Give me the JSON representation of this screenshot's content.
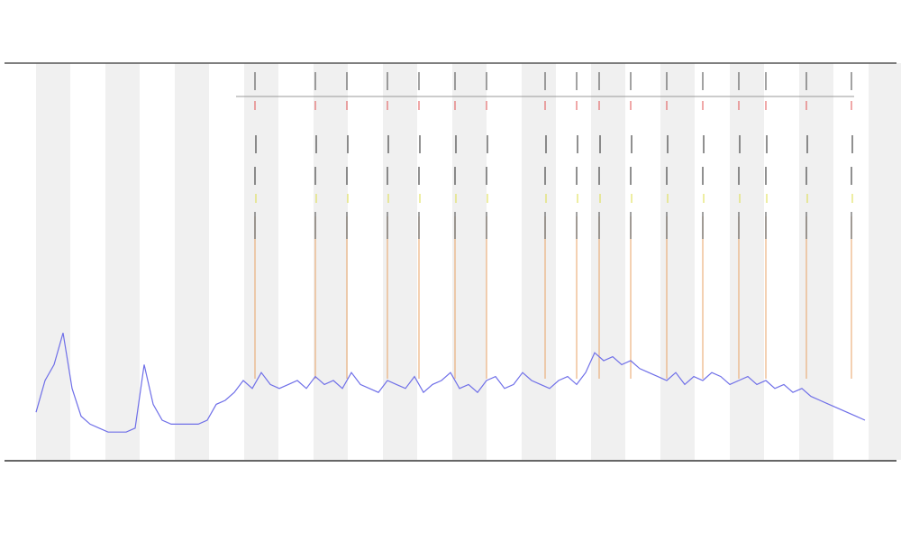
{
  "chart_data": {
    "type": "line",
    "x": [
      40,
      50,
      60,
      70,
      80,
      90,
      100,
      110,
      120,
      130,
      140,
      150,
      160,
      170,
      180,
      190,
      200,
      210,
      220,
      230,
      240,
      250,
      260,
      270,
      280,
      290,
      300,
      310,
      320,
      330,
      340,
      350,
      360,
      370,
      380,
      390,
      400,
      410,
      420,
      430,
      440,
      450,
      460,
      470,
      480,
      490,
      500,
      510,
      520,
      530,
      540,
      550,
      560,
      570,
      580,
      590,
      600,
      610,
      620,
      630,
      640,
      650,
      660,
      670,
      680,
      690,
      700,
      710,
      720,
      730,
      740,
      750,
      760,
      770,
      780,
      790,
      800,
      810,
      820,
      830,
      840,
      850,
      860,
      870,
      880,
      890,
      900,
      910,
      920,
      930,
      940,
      950,
      960
    ],
    "values": [
      12,
      20,
      24,
      32,
      18,
      11,
      9,
      8,
      7,
      7,
      7,
      8,
      24,
      14,
      10,
      9,
      9,
      9,
      9,
      10,
      14,
      15,
      17,
      20,
      18,
      22,
      19,
      18,
      19,
      20,
      18,
      21,
      19,
      20,
      18,
      22,
      19,
      18,
      17,
      20,
      19,
      18,
      21,
      17,
      19,
      20,
      22,
      18,
      19,
      17,
      20,
      21,
      18,
      19,
      22,
      20,
      19,
      18,
      20,
      21,
      19,
      22,
      27,
      25,
      26,
      24,
      25,
      23,
      22,
      21,
      20,
      22,
      19,
      21,
      20,
      22,
      21,
      19,
      20,
      21,
      19,
      20,
      18,
      19,
      17,
      18,
      16,
      15,
      14,
      13,
      12,
      11,
      10
    ],
    "color": "#6f6fe8",
    "events": {
      "x": [
        283,
        350,
        385,
        430,
        465,
        505,
        540,
        605,
        640,
        665,
        700,
        740,
        780,
        820,
        850,
        895,
        945
      ],
      "color": "#e8a060"
    },
    "xlim": [
      5,
      995
    ],
    "ylim": [
      0,
      100
    ]
  }
}
